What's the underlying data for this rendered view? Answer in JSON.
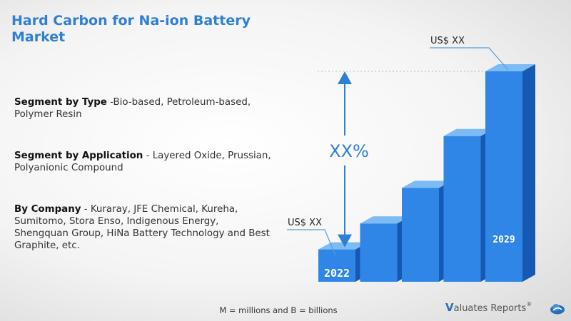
{
  "title": "Hard Carbon for Na-ion Battery Market",
  "segments": [
    {
      "label": "Segment by Type",
      "text": " -Bio-based, Petroleum-based, Polymer Resin"
    },
    {
      "label": "Segment by Application",
      "text": " - Layered Oxide, Prussian, Polyanionic Compound"
    },
    {
      "label": "By Company",
      "text": " - Kuraray, JFE Chemical, Kureha, Sumitomo, Stora Enso, Indigenous Energy, Shengquan Group, HiNa Battery Technology and Best Graphite, etc."
    }
  ],
  "footer_note": "M = millions  and B = billions",
  "logo": {
    "v": "V",
    "rest": "aluates Reports",
    "reg": "®"
  },
  "colors": {
    "title": "#2f7fd4",
    "bar_front": "#2f86e6",
    "bar_side": "#1659b5",
    "bar_top": "#7dbbf5",
    "arrow": "#2f7fd4"
  },
  "chart_data": {
    "type": "bar",
    "categories": [
      "2022",
      "",
      "",
      "",
      "2029"
    ],
    "values": [
      1,
      1.8,
      2.9,
      4.5,
      6.5
    ],
    "value_labels": {
      "start": "US$ XX",
      "end": "US$ XX"
    },
    "cagr_label": "XX%",
    "year_labels": [
      "2022",
      "2029"
    ]
  }
}
